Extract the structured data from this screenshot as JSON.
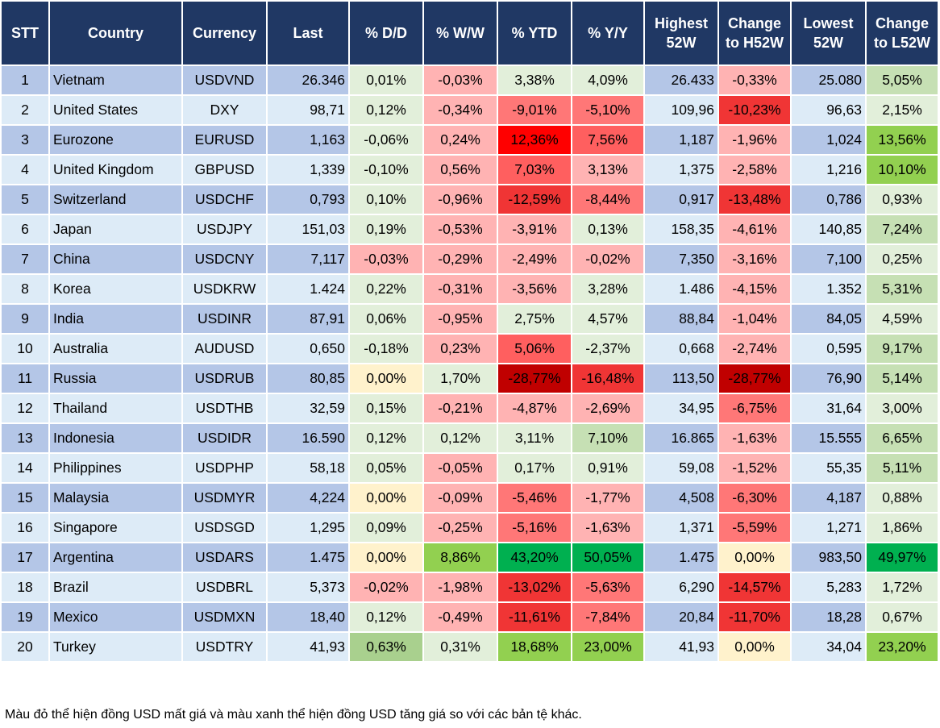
{
  "headers": [
    "STT",
    "Country",
    "Currency",
    "Last",
    "% D/D",
    "% W/W",
    "% YTD",
    "% Y/Y",
    "Highest 52W",
    "Change to H52W",
    "Lowest 52W",
    "Change to L52W"
  ],
  "colors": {
    "header": "#203864",
    "row_odd": "#B4C6E7",
    "row_even": "#DDEBF7",
    "lg": "#E2EFDA",
    "pk": "#FFB3B3",
    "r1": "#FF7777",
    "r2": "#FF5F5F",
    "r3": "#F03535",
    "r4": "#FF0000",
    "dr": "#C00000",
    "yl": "#FFF2CC",
    "g1": "#C6E0B4",
    "g2": "#A9D08E",
    "g3": "#92D050",
    "g4": "#00B050"
  },
  "rows": [
    {
      "stt": "1",
      "country": "Vietnam",
      "currency": "USDVND",
      "last": "26.346",
      "dd": "0,01%",
      "ww": "-0,03%",
      "ytd": "3,38%",
      "yy": "4,09%",
      "high": "26.433",
      "chh": "-0,33%",
      "low": "25.080",
      "chl": "5,05%",
      "fill": [
        "lg",
        "pk",
        "lg",
        "lg",
        "pk",
        "g1"
      ]
    },
    {
      "stt": "2",
      "country": "United States",
      "currency": "DXY",
      "last": "98,71",
      "dd": "0,12%",
      "ww": "-0,34%",
      "ytd": "-9,01%",
      "yy": "-5,10%",
      "high": "109,96",
      "chh": "-10,23%",
      "low": "96,63",
      "chl": "2,15%",
      "fill": [
        "lg",
        "pk",
        "r1",
        "r1",
        "r3",
        "lg"
      ]
    },
    {
      "stt": "3",
      "country": "Eurozone",
      "currency": "EURUSD",
      "last": "1,163",
      "dd": "-0,06%",
      "ww": "0,24%",
      "ytd": "12,36%",
      "yy": "7,56%",
      "high": "1,187",
      "chh": "-1,96%",
      "low": "1,024",
      "chl": "13,56%",
      "fill": [
        "lg",
        "pk",
        "r4",
        "r2",
        "pk",
        "g3"
      ]
    },
    {
      "stt": "4",
      "country": "United Kingdom",
      "currency": "GBPUSD",
      "last": "1,339",
      "dd": "-0,10%",
      "ww": "0,56%",
      "ytd": "7,03%",
      "yy": "3,13%",
      "high": "1,375",
      "chh": "-2,58%",
      "low": "1,216",
      "chl": "10,10%",
      "fill": [
        "lg",
        "pk",
        "r2",
        "pk",
        "pk",
        "g3"
      ]
    },
    {
      "stt": "5",
      "country": "Switzerland",
      "currency": "USDCHF",
      "last": "0,793",
      "dd": "0,10%",
      "ww": "-0,96%",
      "ytd": "-12,59%",
      "yy": "-8,44%",
      "high": "0,917",
      "chh": "-13,48%",
      "low": "0,786",
      "chl": "0,93%",
      "fill": [
        "lg",
        "pk",
        "r3",
        "r1",
        "r3",
        "lg"
      ]
    },
    {
      "stt": "6",
      "country": "Japan",
      "currency": "USDJPY",
      "last": "151,03",
      "dd": "0,19%",
      "ww": "-0,53%",
      "ytd": "-3,91%",
      "yy": "0,13%",
      "high": "158,35",
      "chh": "-4,61%",
      "low": "140,85",
      "chl": "7,24%",
      "fill": [
        "lg",
        "pk",
        "pk",
        "lg",
        "pk",
        "g1"
      ]
    },
    {
      "stt": "7",
      "country": "China",
      "currency": "USDCNY",
      "last": "7,117",
      "dd": "-0,03%",
      "ww": "-0,29%",
      "ytd": "-2,49%",
      "yy": "-0,02%",
      "high": "7,350",
      "chh": "-3,16%",
      "low": "7,100",
      "chl": "0,25%",
      "fill": [
        "pk",
        "pk",
        "pk",
        "pk",
        "pk",
        "lg"
      ]
    },
    {
      "stt": "8",
      "country": "Korea",
      "currency": "USDKRW",
      "last": "1.424",
      "dd": "0,22%",
      "ww": "-0,31%",
      "ytd": "-3,56%",
      "yy": "3,28%",
      "high": "1.486",
      "chh": "-4,15%",
      "low": "1.352",
      "chl": "5,31%",
      "fill": [
        "lg",
        "pk",
        "pk",
        "lg",
        "pk",
        "g1"
      ]
    },
    {
      "stt": "9",
      "country": "India",
      "currency": "USDINR",
      "last": "87,91",
      "dd": "0,06%",
      "ww": "-0,95%",
      "ytd": "2,75%",
      "yy": "4,57%",
      "high": "88,84",
      "chh": "-1,04%",
      "low": "84,05",
      "chl": "4,59%",
      "fill": [
        "lg",
        "pk",
        "lg",
        "lg",
        "pk",
        "lg"
      ]
    },
    {
      "stt": "10",
      "country": "Australia",
      "currency": "AUDUSD",
      "last": "0,650",
      "dd": "-0,18%",
      "ww": "0,23%",
      "ytd": "5,06%",
      "yy": "-2,37%",
      "high": "0,668",
      "chh": "-2,74%",
      "low": "0,595",
      "chl": "9,17%",
      "fill": [
        "lg",
        "pk",
        "r2",
        "lg",
        "pk",
        "g1"
      ]
    },
    {
      "stt": "11",
      "country": "Russia",
      "currency": "USDRUB",
      "last": "80,85",
      "dd": "0,00%",
      "ww": "1,70%",
      "ytd": "-28,77%",
      "yy": "-16,48%",
      "high": "113,50",
      "chh": "-28,77%",
      "low": "76,90",
      "chl": "5,14%",
      "fill": [
        "yl",
        "lg",
        "dr",
        "r3",
        "dr",
        "g1"
      ]
    },
    {
      "stt": "12",
      "country": "Thailand",
      "currency": "USDTHB",
      "last": "32,59",
      "dd": "0,15%",
      "ww": "-0,21%",
      "ytd": "-4,87%",
      "yy": "-2,69%",
      "high": "34,95",
      "chh": "-6,75%",
      "low": "31,64",
      "chl": "3,00%",
      "fill": [
        "lg",
        "pk",
        "pk",
        "pk",
        "r1",
        "lg"
      ]
    },
    {
      "stt": "13",
      "country": "Indonesia",
      "currency": "USDIDR",
      "last": "16.590",
      "dd": "0,12%",
      "ww": "0,12%",
      "ytd": "3,11%",
      "yy": "7,10%",
      "high": "16.865",
      "chh": "-1,63%",
      "low": "15.555",
      "chl": "6,65%",
      "fill": [
        "lg",
        "lg",
        "lg",
        "g1",
        "pk",
        "g1"
      ]
    },
    {
      "stt": "14",
      "country": "Philippines",
      "currency": "USDPHP",
      "last": "58,18",
      "dd": "0,05%",
      "ww": "-0,05%",
      "ytd": "0,17%",
      "yy": "0,91%",
      "high": "59,08",
      "chh": "-1,52%",
      "low": "55,35",
      "chl": "5,11%",
      "fill": [
        "lg",
        "pk",
        "lg",
        "lg",
        "pk",
        "g1"
      ]
    },
    {
      "stt": "15",
      "country": "Malaysia",
      "currency": "USDMYR",
      "last": "4,224",
      "dd": "0,00%",
      "ww": "-0,09%",
      "ytd": "-5,46%",
      "yy": "-1,77%",
      "high": "4,508",
      "chh": "-6,30%",
      "low": "4,187",
      "chl": "0,88%",
      "fill": [
        "yl",
        "pk",
        "r1",
        "pk",
        "r1",
        "lg"
      ]
    },
    {
      "stt": "16",
      "country": "Singapore",
      "currency": "USDSGD",
      "last": "1,295",
      "dd": "0,09%",
      "ww": "-0,25%",
      "ytd": "-5,16%",
      "yy": "-1,63%",
      "high": "1,371",
      "chh": "-5,59%",
      "low": "1,271",
      "chl": "1,86%",
      "fill": [
        "lg",
        "pk",
        "r1",
        "pk",
        "r1",
        "lg"
      ]
    },
    {
      "stt": "17",
      "country": "Argentina",
      "currency": "USDARS",
      "last": "1.475",
      "dd": "0,00%",
      "ww": "8,86%",
      "ytd": "43,20%",
      "yy": "50,05%",
      "high": "1.475",
      "chh": "0,00%",
      "low": "983,50",
      "chl": "49,97%",
      "fill": [
        "yl",
        "g3",
        "g4",
        "g4",
        "yl",
        "g4"
      ]
    },
    {
      "stt": "18",
      "country": "Brazil",
      "currency": "USDBRL",
      "last": "5,373",
      "dd": "-0,02%",
      "ww": "-1,98%",
      "ytd": "-13,02%",
      "yy": "-5,63%",
      "high": "6,290",
      "chh": "-14,57%",
      "low": "5,283",
      "chl": "1,72%",
      "fill": [
        "pk",
        "pk",
        "r3",
        "r1",
        "r3",
        "lg"
      ]
    },
    {
      "stt": "19",
      "country": "Mexico",
      "currency": "USDMXN",
      "last": "18,40",
      "dd": "0,12%",
      "ww": "-0,49%",
      "ytd": "-11,61%",
      "yy": "-7,84%",
      "high": "20,84",
      "chh": "-11,70%",
      "low": "18,28",
      "chl": "0,67%",
      "fill": [
        "lg",
        "pk",
        "r3",
        "r1",
        "r3",
        "lg"
      ]
    },
    {
      "stt": "20",
      "country": "Turkey",
      "currency": "USDTRY",
      "last": "41,93",
      "dd": "0,63%",
      "ww": "0,31%",
      "ytd": "18,68%",
      "yy": "23,00%",
      "high": "41,93",
      "chh": "0,00%",
      "low": "34,04",
      "chl": "23,20%",
      "fill": [
        "g2",
        "lg",
        "g3",
        "g3",
        "yl",
        "g3"
      ]
    }
  ],
  "footnote": "Màu đỏ thể hiện đồng USD mất giá và màu xanh thể hiện đồng USD tăng giá so với các bản tệ khác."
}
